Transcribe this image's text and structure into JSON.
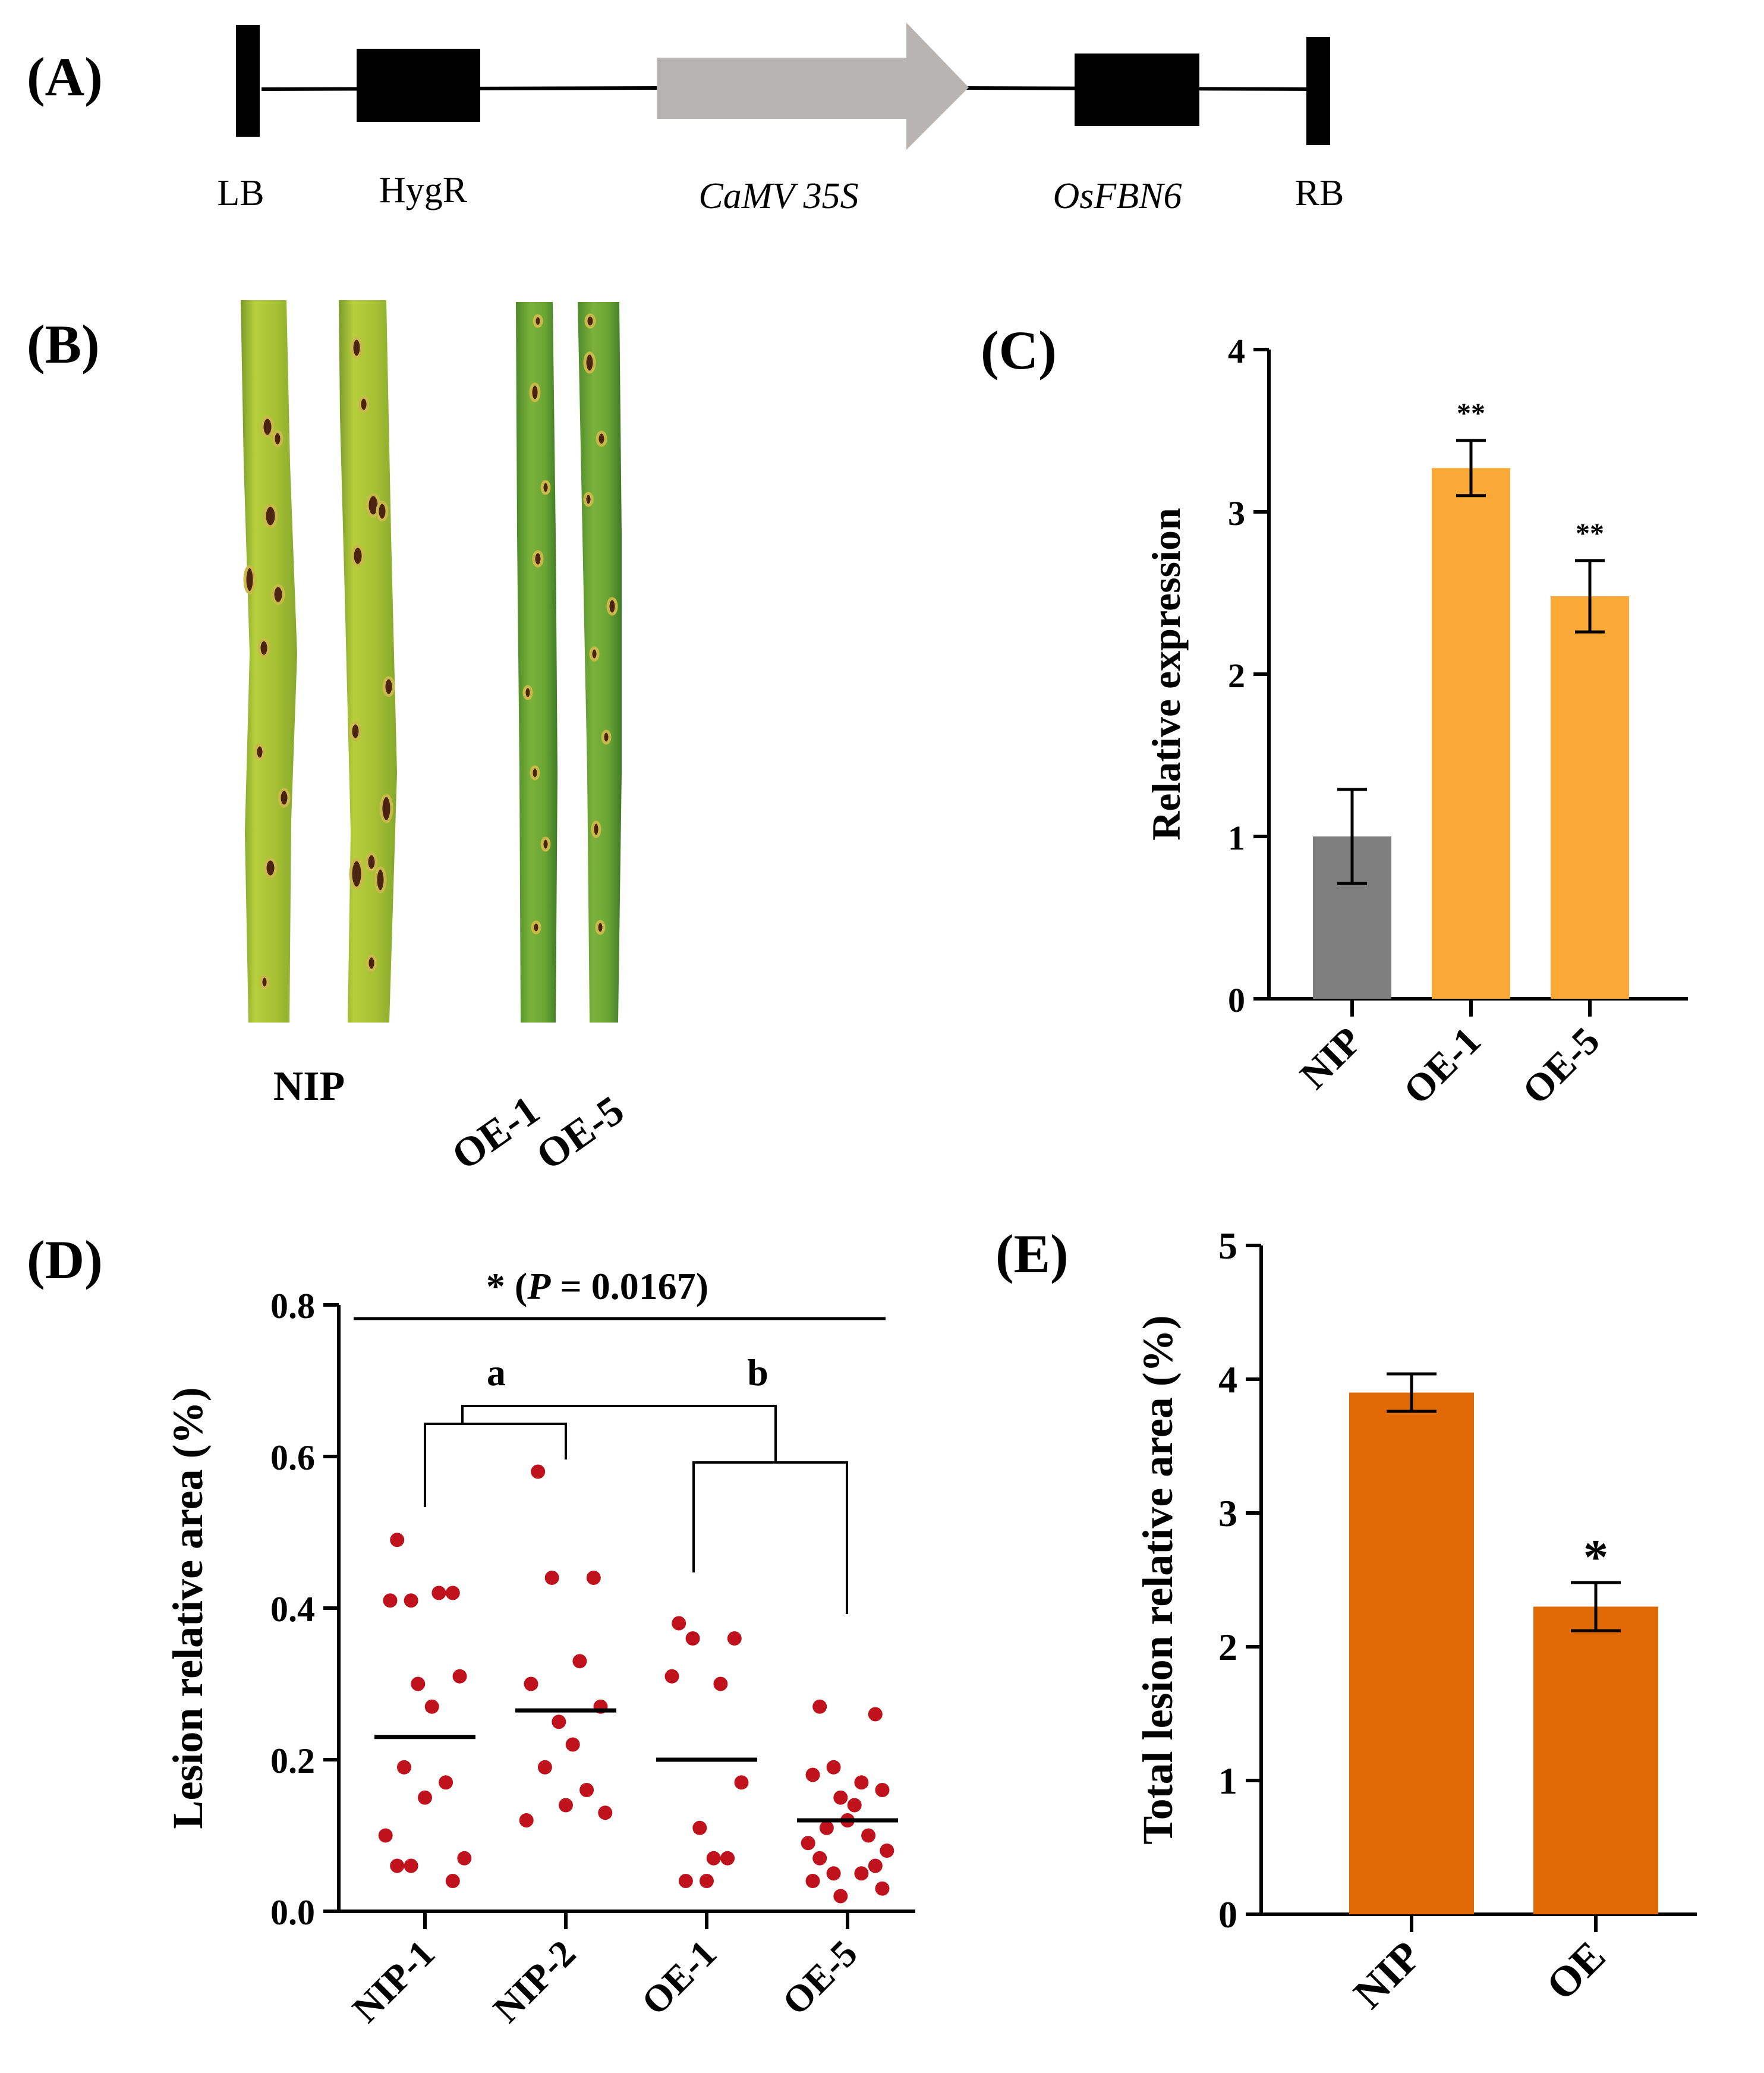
{
  "panels": {
    "a": {
      "label": "(A)",
      "elements": {
        "lb": "LB",
        "hygr": "HygR",
        "camv": "CaMV 35S",
        "gene": "OsFBN6",
        "rb": "RB"
      }
    },
    "b": {
      "label": "(B)",
      "groups": {
        "nip": "NIP",
        "oe1": "OE-1",
        "oe5": "OE-5"
      },
      "leaf_colors": {
        "nip": "#a9c632",
        "oe": "#6fa435",
        "lesion": "#4a2410"
      }
    },
    "c": {
      "label": "(C)"
    },
    "d": {
      "label": "(D)",
      "significance": "* (P = 0.0167)",
      "sig_prefix": "* (",
      "sig_p": "P",
      "sig_rest": " = 0.0167)",
      "group_a": "a",
      "group_b": "b"
    },
    "e": {
      "label": "(E)",
      "significance": "*"
    }
  },
  "colors": {
    "black": "#000000",
    "promoter": "#b7b4b2",
    "gray_bar": "#7f7f7f",
    "orange_bar": "#fba936",
    "dark_orange_bar": "#e26a06",
    "dots": "#c0121c"
  },
  "chart_data": [
    {
      "panel": "C",
      "type": "bar",
      "categories": [
        "NIP",
        "OE-1",
        "OE-5"
      ],
      "values": [
        1.0,
        3.27,
        2.48
      ],
      "errors": [
        0.29,
        0.17,
        0.22
      ],
      "significance": [
        "",
        "**",
        "**"
      ],
      "ylabel": "Relative expression",
      "ylim": [
        0,
        4
      ],
      "yticks": [
        "0",
        "1",
        "2",
        "3",
        "4"
      ]
    },
    {
      "panel": "D",
      "type": "scatter",
      "categories": [
        "NIP-1",
        "NIP-2",
        "OE-1",
        "OE-5"
      ],
      "means": [
        0.23,
        0.265,
        0.2,
        0.12
      ],
      "points": [
        [
          0.49,
          0.42,
          0.41,
          0.42,
          0.41,
          0.31,
          0.3,
          0.27,
          0.19,
          0.17,
          0.15,
          0.1,
          0.07,
          0.06,
          0.04,
          0.06
        ],
        [
          0.58,
          0.44,
          0.44,
          0.33,
          0.3,
          0.27,
          0.25,
          0.22,
          0.19,
          0.16,
          0.14,
          0.12,
          0.13
        ],
        [
          0.38,
          0.36,
          0.36,
          0.3,
          0.31,
          0.17,
          0.11,
          0.07,
          0.04,
          0.07,
          0.04
        ],
        [
          0.27,
          0.26,
          0.19,
          0.17,
          0.18,
          0.16,
          0.15,
          0.14,
          0.11,
          0.1,
          0.12,
          0.09,
          0.08,
          0.07,
          0.06,
          0.05,
          0.05,
          0.04,
          0.03,
          0.02
        ]
      ],
      "ylabel": "Lesion relative area (%)",
      "ylim": [
        0,
        0.8
      ],
      "yticks": [
        "0.0",
        "0.2",
        "0.4",
        "0.6",
        "0.8"
      ]
    },
    {
      "panel": "E",
      "type": "bar",
      "categories": [
        "NIP",
        "OE"
      ],
      "values": [
        3.9,
        2.3
      ],
      "errors": [
        0.14,
        0.18
      ],
      "significance": [
        "",
        "*"
      ],
      "ylabel": "Total lesion relative area (%)",
      "ylim": [
        0,
        5
      ],
      "yticks": [
        "0",
        "1",
        "2",
        "3",
        "4",
        "5"
      ]
    }
  ]
}
